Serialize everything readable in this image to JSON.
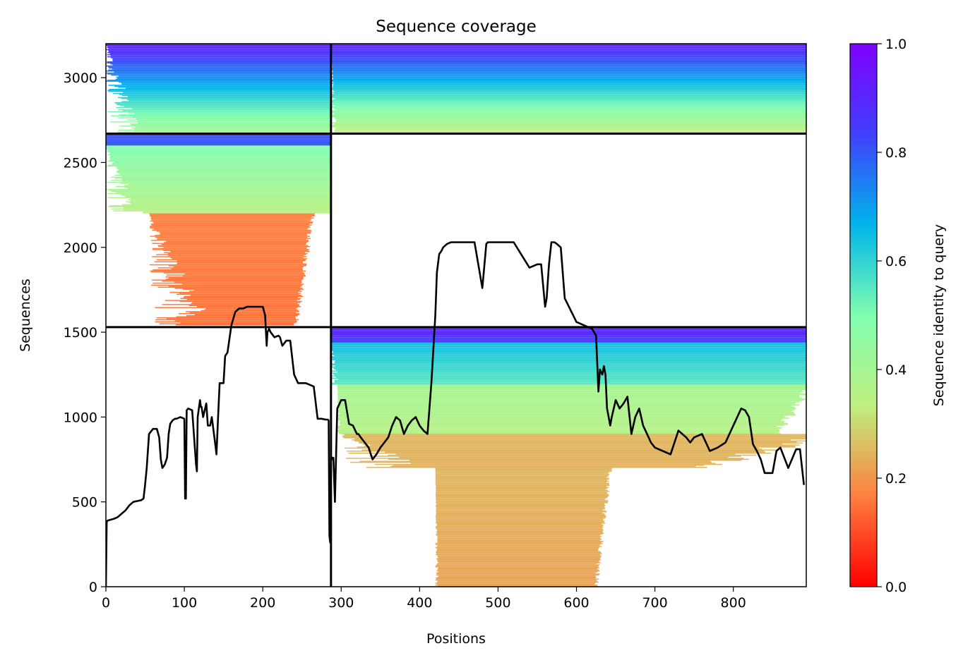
{
  "chart_data": {
    "type": "heatmap",
    "title": "Sequence coverage",
    "xlabel": "Positions",
    "ylabel": "Sequences",
    "xlim": [
      0,
      893
    ],
    "ylim": [
      0,
      3200
    ],
    "xticks": [
      0,
      100,
      200,
      300,
      400,
      500,
      600,
      700,
      800
    ],
    "yticks": [
      0,
      500,
      1000,
      1500,
      2000,
      2500,
      3000
    ],
    "colorbar": {
      "label": "Sequence identity to query",
      "range": [
        0,
        1
      ],
      "ticks": [
        "0.0",
        "0.2",
        "0.4",
        "0.6",
        "0.8",
        "1.0"
      ],
      "colormap": [
        "#ff0000",
        "#ff7f3f",
        "#bfef7f",
        "#7ffeb0",
        "#00b5eb",
        "#4040fc",
        "#7f00ff"
      ]
    },
    "chain_boundaries": {
      "x": 287,
      "y": [
        1530,
        2670
      ]
    },
    "blocks": [
      {
        "x0": 0,
        "x1": 287,
        "y0": 2670,
        "y1": 3200,
        "identity_top": 0.92,
        "identity_bottom": 0.4,
        "x_start_min": 0,
        "x_start_max": 50,
        "x_end_min": 287,
        "x_end_max": 287
      },
      {
        "x0": 287,
        "x1": 893,
        "y0": 2670,
        "y1": 3200,
        "identity_top": 0.92,
        "identity_bottom": 0.33,
        "x_start_min": 287,
        "x_start_max": 295,
        "x_end_min": 893,
        "x_end_max": 893
      },
      {
        "x0": 0,
        "x1": 287,
        "y0": 2600,
        "y1": 2670,
        "identity_top": 0.82,
        "identity_bottom": 0.8,
        "x_start_min": 0,
        "x_start_max": 0,
        "x_end_min": 287,
        "x_end_max": 287
      },
      {
        "x0": 0,
        "x1": 287,
        "y0": 2200,
        "y1": 2600,
        "identity_top": 0.5,
        "identity_bottom": 0.35,
        "x_start_min": 0,
        "x_start_max": 50,
        "x_end_min": 287,
        "x_end_max": 287
      },
      {
        "x0": 0,
        "x1": 287,
        "y0": 1540,
        "y1": 2200,
        "identity_top": 0.17,
        "identity_bottom": 0.15,
        "x_start_min": 55,
        "x_start_max": 140,
        "x_end_min": 225,
        "x_end_max": 260
      },
      {
        "x0": 287,
        "x1": 893,
        "y0": 1440,
        "y1": 1530,
        "identity_top": 0.92,
        "identity_bottom": 0.85,
        "x_start_min": 287,
        "x_start_max": 287,
        "x_end_min": 893,
        "x_end_max": 893
      },
      {
        "x0": 287,
        "x1": 893,
        "y0": 1190,
        "y1": 1440,
        "identity_top": 0.65,
        "identity_bottom": 0.55,
        "x_start_min": 287,
        "x_start_max": 300,
        "x_end_min": 893,
        "x_end_max": 893
      },
      {
        "x0": 287,
        "x1": 893,
        "y0": 900,
        "y1": 1190,
        "identity_top": 0.4,
        "identity_bottom": 0.36,
        "x_start_min": 295,
        "x_start_max": 300,
        "x_end_min": 820,
        "x_end_max": 893
      },
      {
        "x0": 287,
        "x1": 893,
        "y0": 700,
        "y1": 900,
        "identity_top": 0.25,
        "identity_bottom": 0.24,
        "x_start_min": 300,
        "x_start_max": 420,
        "x_end_min": 640,
        "x_end_max": 893
      },
      {
        "x0": 287,
        "x1": 893,
        "y0": 0,
        "y1": 700,
        "identity_top": 0.25,
        "identity_bottom": 0.22,
        "x_start_min": 420,
        "x_start_max": 425,
        "x_end_min": 610,
        "x_end_max": 640
      }
    ],
    "coverage_line": {
      "x": [
        0,
        1,
        2,
        10,
        15,
        20,
        25,
        30,
        35,
        40,
        45,
        48,
        50,
        52,
        55,
        60,
        65,
        68,
        70,
        72,
        75,
        78,
        80,
        82,
        85,
        88,
        90,
        95,
        100,
        101,
        102,
        103,
        105,
        110,
        115,
        116,
        117,
        120,
        121,
        122,
        124,
        128,
        130,
        133,
        135,
        140,
        141,
        143,
        145,
        150,
        152,
        155,
        160,
        165,
        170,
        175,
        180,
        185,
        190,
        200,
        203,
        205,
        206,
        208,
        210,
        215,
        220,
        222,
        225,
        230,
        235,
        240,
        245,
        250,
        255,
        260,
        265,
        270,
        275,
        280,
        283,
        284,
        285,
        286,
        287,
        288,
        289,
        290,
        292,
        295,
        300,
        305,
        310,
        315,
        320,
        322,
        325,
        330,
        335,
        340,
        345,
        350,
        355,
        360,
        365,
        370,
        375,
        380,
        385,
        390,
        395,
        400,
        405,
        410,
        415,
        420,
        422,
        425,
        428,
        430,
        435,
        440,
        450,
        460,
        470,
        480,
        485,
        487,
        489,
        491,
        495,
        500,
        520,
        540,
        550,
        555,
        560,
        562,
        565,
        568,
        570,
        572,
        575,
        580,
        585,
        600,
        610,
        620,
        625,
        628,
        630,
        633,
        635,
        637,
        639,
        641,
        643,
        645,
        650,
        655,
        660,
        665,
        670,
        675,
        680,
        685,
        690,
        695,
        700,
        710,
        720,
        730,
        740,
        745,
        750,
        760,
        770,
        780,
        790,
        800,
        810,
        815,
        820,
        825,
        830,
        835,
        840,
        850,
        855,
        860,
        870,
        880,
        885,
        890,
        893
      ],
      "y": [
        0,
        380,
        390,
        400,
        410,
        430,
        450,
        480,
        500,
        505,
        510,
        520,
        600,
        700,
        900,
        930,
        930,
        880,
        750,
        700,
        720,
        760,
        900,
        960,
        980,
        990,
        990,
        1000,
        990,
        520,
        520,
        1040,
        1050,
        1040,
        720,
        680,
        1000,
        1100,
        1060,
        1060,
        1000,
        1080,
        950,
        950,
        1000,
        820,
        780,
        1000,
        1200,
        1200,
        1360,
        1380,
        1540,
        1620,
        1640,
        1640,
        1650,
        1650,
        1650,
        1650,
        1600,
        1420,
        1500,
        1520,
        1500,
        1470,
        1480,
        1470,
        1420,
        1450,
        1450,
        1250,
        1200,
        1200,
        1200,
        1190,
        1180,
        990,
        990,
        985,
        985,
        980,
        300,
        260,
        770,
        750,
        760,
        760,
        500,
        1050,
        1100,
        1100,
        960,
        950,
        900,
        900,
        880,
        850,
        820,
        750,
        780,
        820,
        850,
        880,
        950,
        1000,
        980,
        900,
        950,
        980,
        1000,
        950,
        920,
        900,
        1200,
        1600,
        1850,
        1960,
        1980,
        2000,
        2020,
        2030,
        2030,
        2030,
        2030,
        1760,
        2020,
        2030,
        2030,
        2030,
        2030,
        2030,
        2030,
        1880,
        1900,
        1900,
        1650,
        1700,
        1900,
        2030,
        2030,
        2030,
        2020,
        2000,
        1700,
        1560,
        1540,
        1520,
        1480,
        1150,
        1280,
        1250,
        1300,
        1250,
        1050,
        1000,
        950,
        1000,
        1100,
        1050,
        1080,
        1120,
        900,
        1000,
        1050,
        950,
        900,
        850,
        820,
        800,
        780,
        920,
        880,
        850,
        880,
        900,
        800,
        820,
        850,
        950,
        1050,
        1040,
        1000,
        840,
        800,
        750,
        670,
        670,
        800,
        820,
        700,
        810,
        810,
        600
      ]
    }
  }
}
